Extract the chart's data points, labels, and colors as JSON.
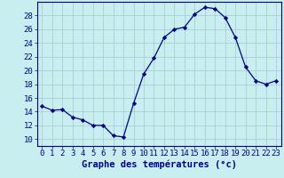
{
  "x": [
    0,
    1,
    2,
    3,
    4,
    5,
    6,
    7,
    8,
    9,
    10,
    11,
    12,
    13,
    14,
    15,
    16,
    17,
    18,
    19,
    20,
    21,
    22,
    23
  ],
  "y": [
    14.8,
    14.2,
    14.3,
    13.2,
    12.8,
    12.0,
    12.0,
    10.5,
    10.3,
    15.2,
    19.5,
    21.8,
    24.8,
    26.0,
    26.3,
    28.2,
    29.2,
    29.0,
    27.7,
    24.8,
    20.5,
    18.5,
    18.0,
    18.5
  ],
  "line_color": "#00008B",
  "marker": "D",
  "marker_size": 2.2,
  "background_color": "#c8eef0",
  "grid_color": "#a0c8d0",
  "xlabel": "Graphe des températures (°c)",
  "ylabel_ticks": [
    10,
    12,
    14,
    16,
    18,
    20,
    22,
    24,
    26,
    28
  ],
  "ylim": [
    9.0,
    30.0
  ],
  "xlim": [
    -0.5,
    23.5
  ],
  "axis_color": "#00008B",
  "tick_color": "#00008B",
  "xlabel_fontsize": 7.5,
  "tick_fontsize": 6.5
}
